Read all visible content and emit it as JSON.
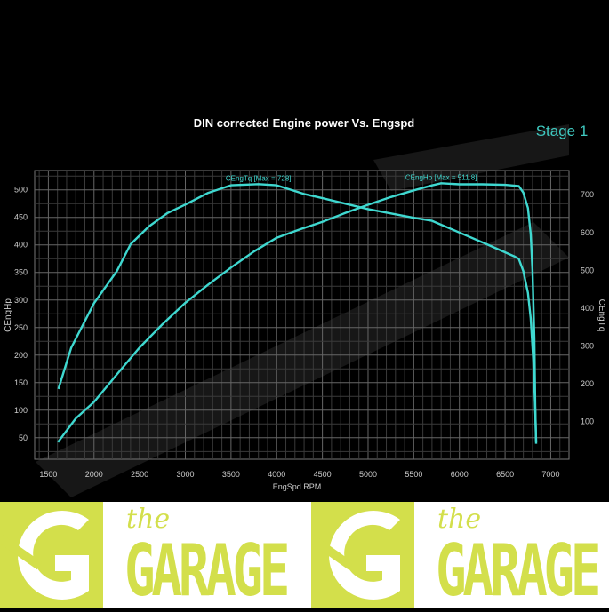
{
  "chart_data": {
    "type": "line",
    "title": "DIN corrected Engine power Vs. Engspd",
    "badge": "Stage 1",
    "xlabel": "EngSpd RPM",
    "ylabel_left": "CEngHp",
    "ylabel_right": "CEngTq",
    "xlim": [
      1350,
      7200
    ],
    "ylim_left": [
      11,
      535
    ],
    "ylim_right": [
      0,
      764
    ],
    "xticks": [
      1500,
      2000,
      2500,
      3000,
      3500,
      4000,
      4500,
      5000,
      5500,
      6000,
      6500,
      7000
    ],
    "yticks_left": [
      50,
      100,
      150,
      200,
      250,
      300,
      350,
      400,
      450,
      500
    ],
    "yticks_right": [
      100,
      200,
      300,
      400,
      500,
      600,
      700
    ],
    "grid": true,
    "line_color": "#3fd8d0",
    "series": [
      {
        "name": "CEngHp",
        "axis": "left",
        "annotation": "CEngHp [Max = 511.8]",
        "x": [
          1605,
          1800,
          2000,
          2250,
          2500,
          2750,
          3000,
          3250,
          3500,
          3750,
          4000,
          4250,
          4500,
          4750,
          5000,
          5250,
          5500,
          5700,
          5800,
          6000,
          6250,
          6500,
          6650,
          6700,
          6750,
          6780,
          6800,
          6820,
          6830,
          6840
        ],
        "y": [
          42,
          85,
          115,
          165,
          214,
          256,
          295,
          328,
          359,
          388,
          413,
          428,
          442,
          458,
          473,
          487,
          499,
          508,
          512,
          510,
          510,
          509,
          507,
          495,
          467,
          420,
          354,
          230,
          106,
          39
        ]
      },
      {
        "name": "CEngTq",
        "axis": "right",
        "annotation": "CEngTq [Max = 728]",
        "x": [
          1610,
          1750,
          2000,
          2250,
          2400,
          2600,
          2800,
          3000,
          3250,
          3500,
          3800,
          4000,
          4300,
          4500,
          5000,
          5500,
          5700,
          6000,
          6300,
          6600,
          6650,
          6700,
          6750,
          6780,
          6810,
          6830,
          6840
        ],
        "y": [
          186,
          295,
          413,
          498,
          569,
          616,
          651,
          674,
          705,
          725,
          728,
          725,
          702,
          691,
          662,
          639,
          631,
          600,
          569,
          537,
          530,
          498,
          440,
          373,
          260,
          130,
          45
        ]
      }
    ]
  },
  "banner": {
    "brand_small": "the",
    "brand_large": "GARAGE"
  }
}
